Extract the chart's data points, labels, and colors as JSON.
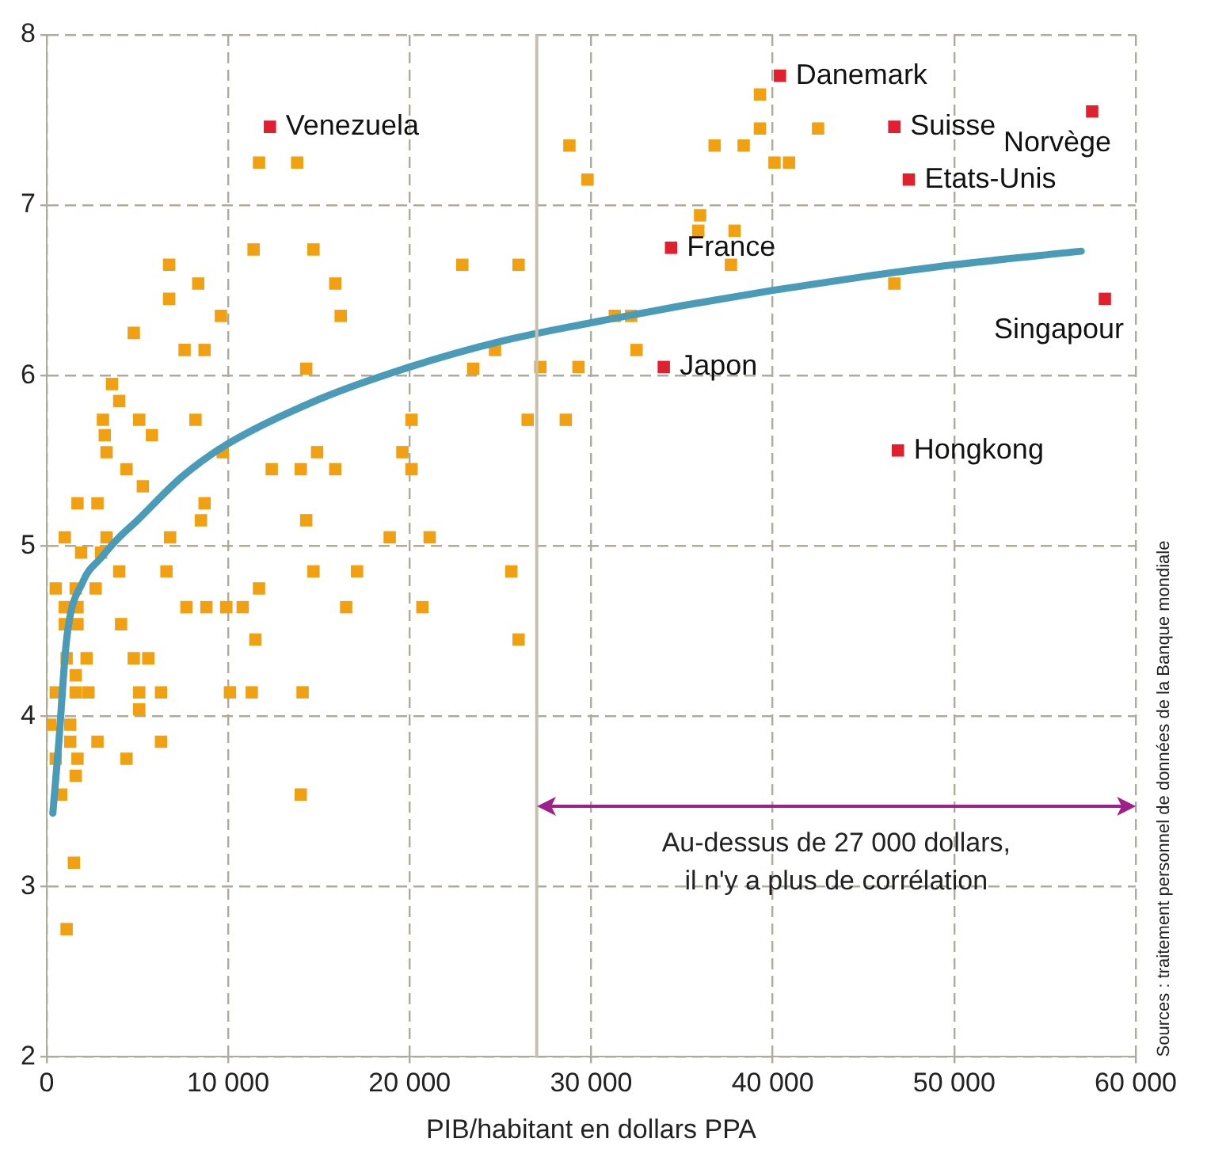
{
  "chart_data": {
    "type": "scatter",
    "xlabel": "PIB/habitant en dollars PPA",
    "xlim": [
      0,
      60000
    ],
    "xticks": [
      0,
      {
        "value": 10000,
        "label": "10 000"
      },
      {
        "value": 20000,
        "label": "20 000"
      },
      {
        "value": 30000,
        "label": "30 000"
      },
      {
        "value": 40000,
        "label": "40 000"
      },
      {
        "value": 50000,
        "label": "50 000"
      },
      {
        "value": 60000,
        "label": "60 000"
      }
    ],
    "ylim": [
      2,
      8
    ],
    "yticks": [
      2,
      3,
      4,
      5,
      6,
      7,
      8
    ],
    "grid": true,
    "legend": false,
    "marker": "square",
    "series": [
      {
        "color": "#f0a010",
        "x": [
          11700,
          13800,
          11400,
          14700,
          6750,
          8350,
          6750,
          9600,
          15900,
          16200,
          4800,
          7600,
          8700,
          14300,
          22900,
          26000,
          24700,
          23500,
          3600,
          4000,
          3100,
          5100,
          8200,
          3200,
          5800,
          20100,
          26500,
          3300,
          9700,
          4400,
          12400,
          14000,
          15900,
          14900,
          19600,
          20100,
          5300,
          1700,
          2800,
          8700,
          8500,
          14300,
          1000,
          3300,
          6800,
          18900,
          21100,
          1900,
          3000,
          4000,
          6600,
          14700,
          17100,
          25600,
          500,
          1600,
          2700,
          11700,
          1000,
          1700,
          7700,
          8800,
          9900,
          10800,
          16500,
          20700,
          1000,
          1700,
          4100,
          11500,
          26000,
          1100,
          2200,
          4800,
          5600,
          1600,
          500,
          1600,
          2300,
          5100,
          6300,
          10100,
          11300,
          14100,
          5100,
          200,
          1300,
          1300,
          2800,
          6300,
          500,
          1700,
          4400,
          1600,
          800,
          14000,
          1500,
          1100,
          39300,
          28800,
          29800,
          36800,
          38400,
          39300,
          42500,
          40100,
          40900,
          36000,
          35900,
          37900,
          37700,
          46700,
          31300,
          32200,
          32500,
          27200,
          29300,
          28600
        ],
        "values": [
          7.25,
          7.25,
          6.74,
          6.74,
          6.65,
          6.54,
          6.45,
          6.35,
          6.54,
          6.35,
          6.25,
          6.15,
          6.15,
          6.04,
          6.65,
          6.65,
          6.15,
          6.04,
          5.95,
          5.85,
          5.74,
          5.74,
          5.74,
          5.65,
          5.65,
          5.74,
          5.74,
          5.55,
          5.55,
          5.45,
          5.45,
          5.45,
          5.45,
          5.55,
          5.55,
          5.45,
          5.35,
          5.25,
          5.25,
          5.25,
          5.15,
          5.15,
          5.05,
          5.05,
          5.05,
          5.05,
          5.05,
          4.96,
          4.96,
          4.85,
          4.85,
          4.85,
          4.85,
          4.85,
          4.75,
          4.75,
          4.75,
          4.75,
          4.64,
          4.64,
          4.64,
          4.64,
          4.64,
          4.64,
          4.64,
          4.64,
          4.54,
          4.54,
          4.54,
          4.45,
          4.45,
          4.34,
          4.34,
          4.34,
          4.34,
          4.24,
          4.14,
          4.14,
          4.14,
          4.14,
          4.14,
          4.14,
          4.14,
          4.14,
          4.04,
          3.95,
          3.95,
          3.85,
          3.85,
          3.85,
          3.75,
          3.75,
          3.75,
          3.65,
          3.54,
          3.54,
          3.14,
          2.75,
          7.65,
          7.35,
          7.15,
          7.35,
          7.35,
          7.45,
          7.45,
          7.25,
          7.25,
          6.94,
          6.85,
          6.85,
          6.65,
          6.54,
          6.35,
          6.35,
          6.15,
          6.05,
          6.05,
          5.74
        ]
      },
      {
        "color": "#e0202e",
        "x": [
          12300,
          40400,
          57600,
          46700,
          47500,
          34400,
          34000,
          58300,
          46900
        ],
        "values": [
          7.46,
          7.76,
          7.55,
          7.46,
          7.15,
          6.75,
          6.05,
          6.45,
          5.56
        ],
        "value_labels": [
          "Venezuela",
          "Danemark",
          "Norvège",
          "Suisse",
          "Etats-Unis",
          "France",
          "Japon",
          "Singapour",
          "Hongkong"
        ]
      },
      {
        "type": "line",
        "color": "#4a9bb8",
        "marker": "none",
        "x": [
          340,
          650,
          1110,
          2000,
          3000,
          3900,
          5000,
          7500,
          10000,
          15000,
          20000,
          25000,
          30000,
          35000,
          40000,
          45000,
          50000,
          57000
        ],
        "values": [
          3.43,
          3.82,
          4.46,
          4.79,
          4.93,
          5.04,
          5.15,
          5.41,
          5.6,
          5.86,
          6.05,
          6.2,
          6.31,
          6.41,
          6.5,
          6.58,
          6.65,
          6.73
        ]
      }
    ],
    "ref_lines": [
      {
        "axis": "x",
        "value": 27000,
        "color": "#c8c0b0"
      }
    ],
    "annotations": [
      "Au-dessus de 27 000 dollars,\nil n'y a plus de corrélation",
      "Sources : traitement personnel de données de la Banque mondiale"
    ]
  }
}
